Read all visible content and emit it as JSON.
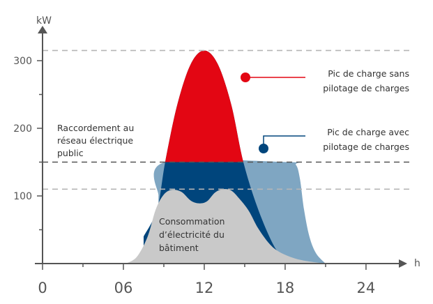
{
  "chart_data": {
    "type": "area",
    "ylabel": "kW",
    "xlabel": "h",
    "xlim": [
      0,
      27
    ],
    "ylim": [
      0,
      330
    ],
    "x_ticks": [
      "0",
      "06",
      "12",
      "18",
      "24"
    ],
    "x_tick_values": [
      0,
      6,
      12,
      18,
      24
    ],
    "y_ticks": [
      "100",
      "200",
      "300"
    ],
    "y_tick_values": [
      100,
      200,
      300
    ],
    "reference_lines": [
      {
        "value": 315,
        "style": "dashed-light"
      },
      {
        "value": 150,
        "style": "dashed-dark",
        "label": [
          "Raccordement au",
          "réseau électrique",
          "public"
        ]
      },
      {
        "value": 110,
        "style": "dashed-light"
      }
    ],
    "series": [
      {
        "name": "Pic de charge avec pilotage de charges",
        "color": "#7fa6c2",
        "points": [
          [
            8.6,
            100
          ],
          [
            9.1,
            150
          ],
          [
            18.2,
            150
          ],
          [
            18.8,
            146
          ],
          [
            19.1,
            125
          ],
          [
            19.4,
            80
          ],
          [
            19.8,
            40
          ],
          [
            20.3,
            15
          ],
          [
            21,
            0
          ]
        ]
      },
      {
        "name": "Pic de charge sans pilotage de charges",
        "color_below_150": "#00457c",
        "color_above_150": "#e30613",
        "peak_hour": 12,
        "peak_kw": 315,
        "points": [
          [
            7.5,
            40
          ],
          [
            8.5,
            80
          ],
          [
            9.1,
            150
          ],
          [
            10,
            235
          ],
          [
            11,
            295
          ],
          [
            12,
            315
          ],
          [
            13,
            295
          ],
          [
            14,
            235
          ],
          [
            14.9,
            150
          ],
          [
            16,
            80
          ],
          [
            17.2,
            25
          ],
          [
            18,
            8
          ]
        ]
      },
      {
        "name": "Consommation d'électricité du bâtiment",
        "color": "#c9c9c9",
        "points": [
          [
            6.2,
            0
          ],
          [
            7,
            10
          ],
          [
            7.8,
            40
          ],
          [
            8.4,
            80
          ],
          [
            9,
            102
          ],
          [
            9.6,
            109
          ],
          [
            10.3,
            106
          ],
          [
            11,
            93
          ],
          [
            11.6,
            89
          ],
          [
            12.2,
            92
          ],
          [
            12.8,
            105
          ],
          [
            13.4,
            110
          ],
          [
            14,
            108
          ],
          [
            14.6,
            96
          ],
          [
            15.3,
            78
          ],
          [
            16,
            52
          ],
          [
            16.8,
            30
          ],
          [
            17.5,
            18
          ],
          [
            18.5,
            9
          ],
          [
            19.5,
            4
          ],
          [
            21,
            0
          ]
        ]
      }
    ],
    "annotations": {
      "sans": {
        "lines": [
          "Pic de charge sans",
          "pilotage de charges"
        ],
        "color": "#e30613"
      },
      "avec": {
        "lines": [
          "Pic de charge avec",
          "pilotage de charges"
        ],
        "color": "#00457c"
      },
      "building": {
        "lines": [
          "Consommation",
          "d’électricité du",
          "bâtiment"
        ]
      }
    }
  }
}
